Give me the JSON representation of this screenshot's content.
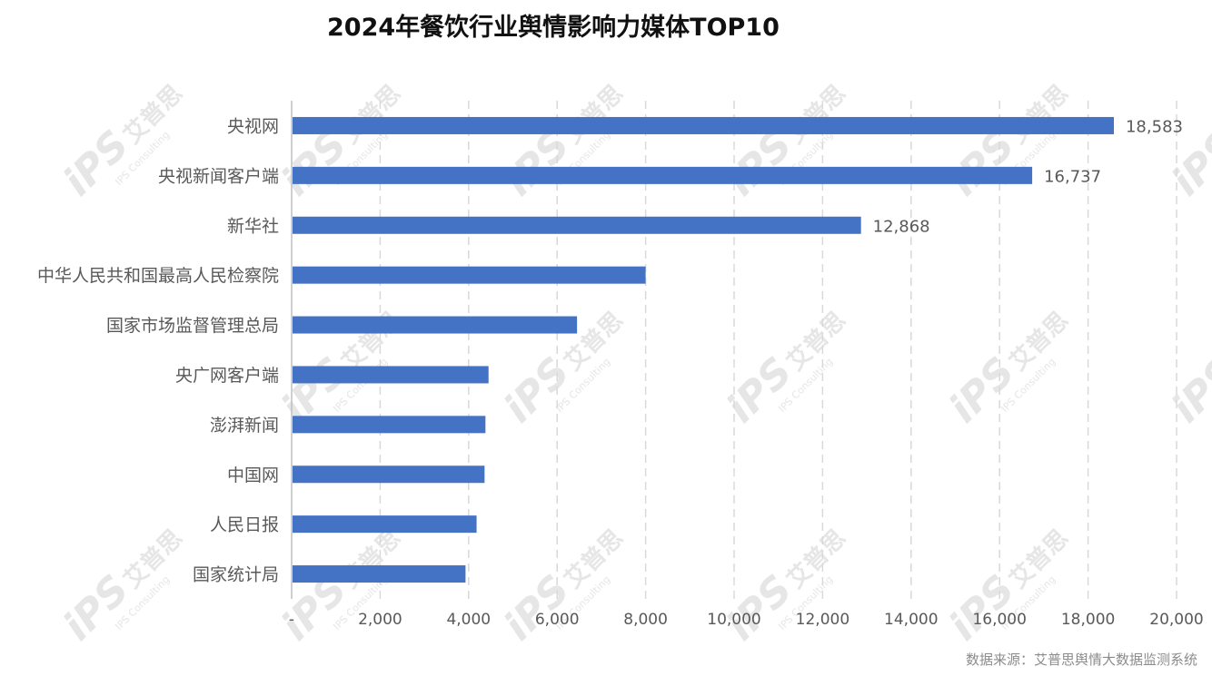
{
  "title": "2024年餐饮行业舆情影响力媒体TOP10",
  "source": "数据来源：艾普思舆情大数据监测系统",
  "watermark": {
    "logo": "iPS",
    "cn": "艾普思",
    "en": "IPS Consulting"
  },
  "colors": {
    "bar": "#4472c4",
    "grid": "#d9d9d9",
    "axis": "#bfbfbf",
    "label": "#595959"
  },
  "chart_data": {
    "type": "bar",
    "orientation": "horizontal",
    "title": "2024年餐饮行业舆情影响力媒体TOP10",
    "categories": [
      "央视网",
      "央视新闻客户端",
      "新华社",
      "中华人民共和国最高人民检察院",
      "国家市场监督管理总局",
      "央广网客户端",
      "澎湃新闻",
      "中国网",
      "人民日报",
      "国家统计局"
    ],
    "values": [
      18583,
      16737,
      12868,
      8000,
      6450,
      4450,
      4380,
      4360,
      4180,
      3930
    ],
    "data_labels": [
      "18,583",
      "16,737",
      "12,868",
      null,
      null,
      null,
      null,
      null,
      null,
      null
    ],
    "xlim": [
      0,
      20000
    ],
    "xticks": [
      0,
      2000,
      4000,
      6000,
      8000,
      10000,
      12000,
      14000,
      16000,
      18000,
      20000
    ],
    "xtick_labels": [
      "-",
      "2,000",
      "4,000",
      "6,000",
      "8,000",
      "10,000",
      "12,000",
      "14,000",
      "16,000",
      "18,000",
      "20,000"
    ],
    "grid": "vertical-dashed",
    "legend": "none"
  }
}
